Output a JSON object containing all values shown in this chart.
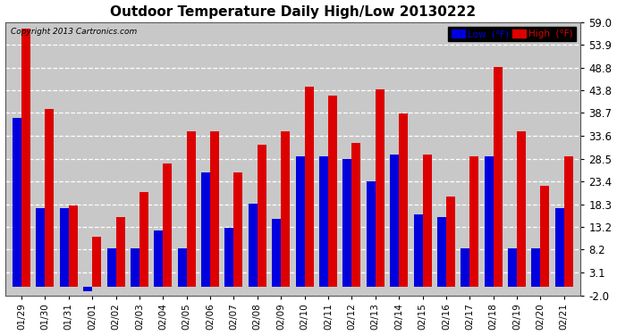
{
  "title": "Outdoor Temperature Daily High/Low 20130222",
  "copyright": "Copyright 2013 Cartronics.com",
  "legend_low": "Low  (°F)",
  "legend_high": "High  (°F)",
  "dates": [
    "01/29",
    "01/30",
    "01/31",
    "02/01",
    "02/02",
    "02/03",
    "02/04",
    "02/05",
    "02/06",
    "02/07",
    "02/08",
    "02/09",
    "02/10",
    "02/11",
    "02/12",
    "02/13",
    "02/14",
    "02/15",
    "02/16",
    "02/17",
    "02/18",
    "02/19",
    "02/20",
    "02/21"
  ],
  "lows": [
    37.5,
    17.5,
    17.5,
    -1.0,
    8.5,
    8.5,
    12.5,
    8.5,
    25.5,
    13.0,
    18.5,
    15.0,
    29.0,
    29.0,
    28.5,
    23.5,
    29.5,
    16.0,
    15.5,
    8.5,
    29.0,
    8.5,
    8.5,
    17.5
  ],
  "highs": [
    57.5,
    39.5,
    18.0,
    11.0,
    15.5,
    21.0,
    27.5,
    34.5,
    34.5,
    25.5,
    31.5,
    34.5,
    44.5,
    42.5,
    32.0,
    44.0,
    38.5,
    29.5,
    20.0,
    29.0,
    49.0,
    34.5,
    22.5,
    29.0
  ],
  "low_color": "#0000dd",
  "high_color": "#dd0000",
  "plot_bg_color": "#c8c8c8",
  "fig_bg_color": "#ffffff",
  "grid_color": "#ffffff",
  "ylim": [
    -2.0,
    59.0
  ],
  "yticks": [
    -2.0,
    3.1,
    8.2,
    13.2,
    18.3,
    23.4,
    28.5,
    33.6,
    38.7,
    43.8,
    48.8,
    53.9,
    59.0
  ],
  "bar_width": 0.38,
  "figsize": [
    6.9,
    3.75
  ],
  "dpi": 100
}
